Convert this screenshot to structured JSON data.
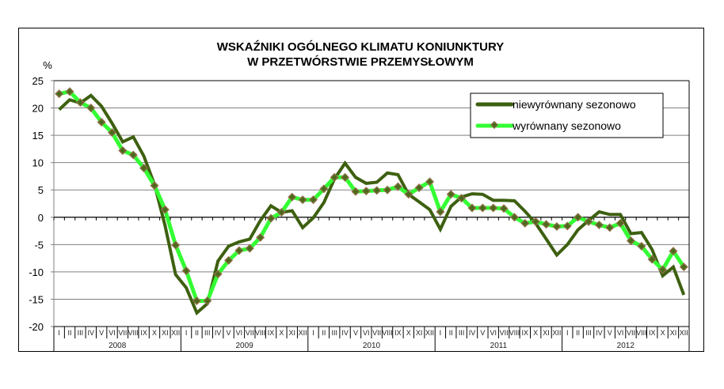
{
  "chart_data": {
    "type": "line",
    "title": "WSKAŹNIKI OGÓLNEGO KLIMATU KONIUNKTURY\nW PRZETWÓRSTWIE PRZEMYSŁOWYM",
    "title_lines": [
      "WSKAŹNIKI OGÓLNEGO KLIMATU KONIUNKTURY",
      "W PRZETWÓRSTWIE PRZEMYSŁOWYM"
    ],
    "ylabel": "%",
    "xlabel": "",
    "ylim": [
      -20,
      25
    ],
    "yticks": [
      25,
      20,
      15,
      10,
      5,
      0,
      -5,
      -10,
      -15,
      -20
    ],
    "grid": true,
    "legend_position": "upper right",
    "years": [
      "2008",
      "2009",
      "2010",
      "2011",
      "2012"
    ],
    "months": [
      "I",
      "II",
      "III",
      "IV",
      "V",
      "VI",
      "VII",
      "VIII",
      "IX",
      "X",
      "XI",
      "XII"
    ],
    "x": [
      "2008-I",
      "2008-II",
      "2008-III",
      "2008-IV",
      "2008-V",
      "2008-VI",
      "2008-VII",
      "2008-VIII",
      "2008-IX",
      "2008-X",
      "2008-XI",
      "2008-XII",
      "2009-I",
      "2009-II",
      "2009-III",
      "2009-IV",
      "2009-V",
      "2009-VI",
      "2009-VII",
      "2009-VIII",
      "2009-IX",
      "2009-X",
      "2009-XI",
      "2009-XII",
      "2010-I",
      "2010-II",
      "2010-III",
      "2010-IV",
      "2010-V",
      "2010-VI",
      "2010-VII",
      "2010-VIII",
      "2010-IX",
      "2010-X",
      "2010-XI",
      "2010-XII",
      "2011-I",
      "2011-II",
      "2011-III",
      "2011-IV",
      "2011-V",
      "2011-VI",
      "2011-VII",
      "2011-VIII",
      "2011-IX",
      "2011-X",
      "2011-XI",
      "2011-XII",
      "2012-I",
      "2012-II",
      "2012-III",
      "2012-IV",
      "2012-V",
      "2012-VI",
      "2012-VII",
      "2012-VIII",
      "2012-IX",
      "2012-X",
      "2012-XI",
      "2012-XII"
    ],
    "series": [
      {
        "name": "niewyrównany sezonowo",
        "color": "#3d6010",
        "marker": "none",
        "values": [
          19.7,
          21.5,
          20.9,
          22.3,
          20.3,
          17.2,
          13.8,
          14.7,
          11.2,
          6.0,
          -1.5,
          -10.5,
          -12.9,
          -17.5,
          -15.8,
          -8.0,
          -5.3,
          -4.5,
          -4.0,
          -0.6,
          2.1,
          0.9,
          1.2,
          -1.9,
          -0.1,
          2.7,
          7.0,
          9.9,
          7.3,
          6.2,
          6.4,
          8.1,
          7.8,
          4.2,
          2.8,
          1.4,
          -2.2,
          2.0,
          3.7,
          4.3,
          4.2,
          3.1,
          3.1,
          3.0,
          1.1,
          -1.1,
          -4.0,
          -6.9,
          -5.0,
          -2.3,
          -0.6,
          1.0,
          0.5,
          0.5,
          -3.0,
          -2.8,
          -5.9,
          -10.7,
          -9.1,
          -14.2
        ]
      },
      {
        "name": "wyrównany sezonowo",
        "color": "#33ff33",
        "marker": "diamond",
        "marker_color": "#8b6f47",
        "values": [
          22.6,
          23.0,
          21.0,
          20.0,
          17.4,
          15.5,
          12.2,
          11.4,
          9.0,
          5.8,
          1.4,
          -5.1,
          -9.8,
          -15.3,
          -15.3,
          -10.4,
          -7.9,
          -6.1,
          -5.7,
          -3.7,
          -0.2,
          0.9,
          3.7,
          3.2,
          3.2,
          5.2,
          7.3,
          7.3,
          4.7,
          4.8,
          4.9,
          5.0,
          5.6,
          4.2,
          5.4,
          6.5,
          1.0,
          4.2,
          3.5,
          1.7,
          1.7,
          1.7,
          1.6,
          0.0,
          -1.1,
          -0.8,
          -1.3,
          -1.7,
          -1.6,
          0.0,
          -0.8,
          -1.4,
          -1.9,
          -1.1,
          -4.3,
          -5.3,
          -7.7,
          -9.6,
          -6.2,
          -9.1
        ]
      }
    ]
  },
  "legend": {
    "items": [
      {
        "label": "niewyrównany sezonowo"
      },
      {
        "label": "wyrównany sezonowo"
      }
    ]
  },
  "colors": {
    "unadjusted": "#3d6010",
    "adjusted": "#33ff33",
    "marker": "#8b6f47",
    "grid": "#808080",
    "axis": "#000000"
  }
}
